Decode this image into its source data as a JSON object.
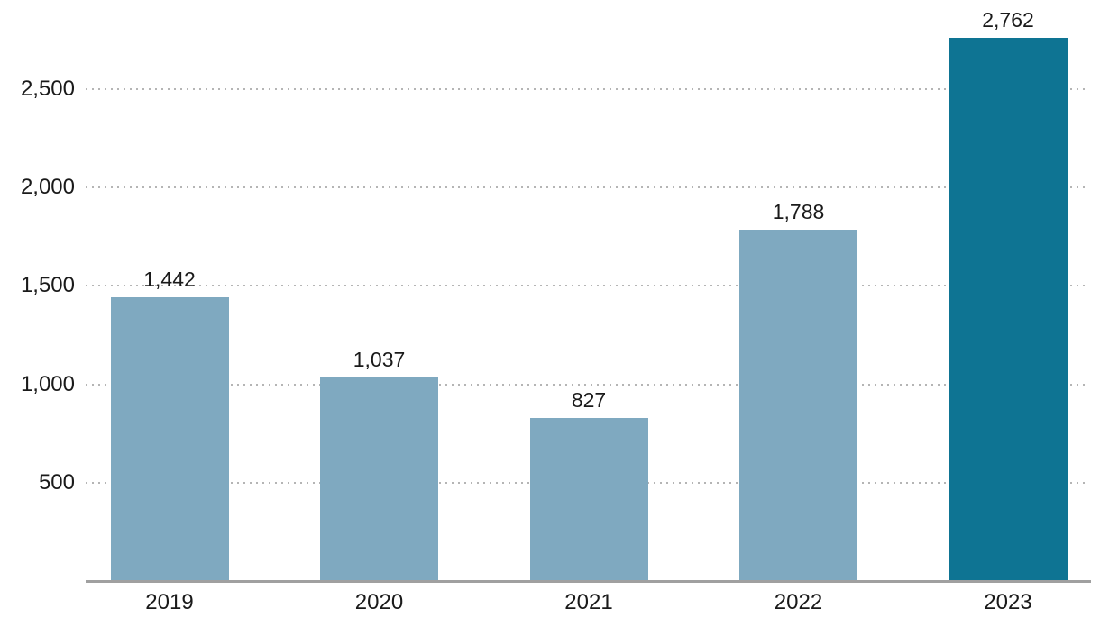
{
  "chart_data": {
    "type": "bar",
    "categories": [
      "2019",
      "2020",
      "2021",
      "2022",
      "2023"
    ],
    "values": [
      1442,
      1037,
      827,
      1788,
      2762
    ],
    "value_labels": [
      "1,442",
      "1,037",
      "827",
      "1,788",
      "2,762"
    ],
    "title": "",
    "xlabel": "",
    "ylabel": "",
    "ylim": [
      0,
      2900
    ],
    "yticks": [
      {
        "value": 500,
        "label": "500"
      },
      {
        "value": 1000,
        "label": "1,000"
      },
      {
        "value": 1500,
        "label": "1,500"
      },
      {
        "value": 2000,
        "label": "2,000"
      },
      {
        "value": 2500,
        "label": "2,500"
      }
    ],
    "grid": "horizontal-dotted",
    "legend_position": "none",
    "colors": {
      "bar": "#7fa9c0",
      "highlight_bar": "#0e7493",
      "highlight_category": "2023",
      "gridline": "#b5b5b5",
      "axis_line": "#a0a0a0",
      "text": "#1a1a1a",
      "background": "#ffffff"
    }
  }
}
